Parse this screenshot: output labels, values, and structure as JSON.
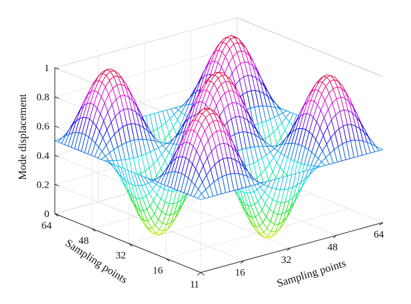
{
  "chart_data": {
    "type": "surface",
    "style": "3d-mesh",
    "colormap": "hsv",
    "xlabel": "Sampling points",
    "ylabel": "Sampling points",
    "zlabel": "Mode displacement",
    "xlim": [
      1,
      64
    ],
    "ylim": [
      1,
      64
    ],
    "zlim": [
      0,
      1
    ],
    "x_ticks": [
      "1",
      "16",
      "32",
      "48",
      "64"
    ],
    "y_ticks": [
      "1",
      "16",
      "32",
      "48",
      "64"
    ],
    "z_ticks": [
      "0",
      "0.2",
      "0.4",
      "0.6",
      "0.8",
      "1"
    ],
    "grid": true,
    "surface_model": {
      "baseline": 0.5,
      "amplitude": 0.5,
      "x_wave": "sin",
      "y_wave": "sin",
      "x_cycles": 1.5,
      "y_cycles": 1.5,
      "mesh_lines": 44
    }
  }
}
